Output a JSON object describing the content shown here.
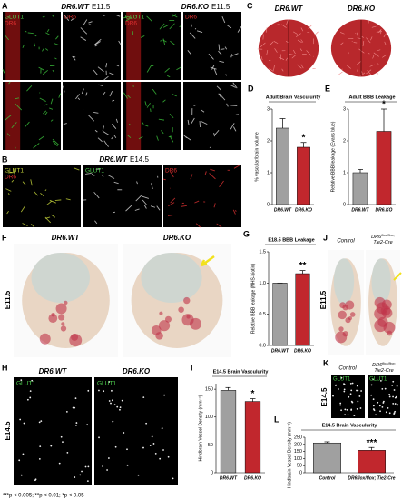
{
  "panel_labels": [
    "A",
    "B",
    "C",
    "D",
    "E",
    "F",
    "G",
    "H",
    "I",
    "J",
    "K",
    "L"
  ],
  "genotypes": {
    "wt": "DR6.WT",
    "ko": "DR6.KO",
    "control": "Control",
    "conditional": {
      "gene": "DR6",
      "allele": "flox/flox;",
      "driver": "Tie2-Cre"
    }
  },
  "stages": {
    "e11": "E11.5",
    "e14": "E14.5"
  },
  "stains": {
    "glut1": "GLUT1",
    "dr6": "DR6"
  },
  "footnote": "***p < 0.005; **p < 0.01; *p < 0.05",
  "chart_data": [
    {
      "type": "bar",
      "title": "Adult Brain Vasculurity",
      "ylabel": "% vascular/brain volume",
      "categories": [
        "DR6.WT",
        "DR6.KO"
      ],
      "values": [
        2.4,
        1.8
      ],
      "errors": [
        0.3,
        0.15
      ],
      "colors": [
        "#a0a0a0",
        "#c1272d"
      ],
      "annotation": "*",
      "ylim": [
        0,
        3
      ],
      "yticks": [
        0,
        1,
        2,
        3
      ]
    },
    {
      "type": "bar",
      "title": "Adult BBB Leakage",
      "ylabel": "Relative BBB leakage (Evans blue)",
      "categories": [
        "DR6.WT",
        "DR6.KO"
      ],
      "values": [
        1.0,
        2.3
      ],
      "errors": [
        0.1,
        0.7
      ],
      "colors": [
        "#a0a0a0",
        "#c1272d"
      ],
      "annotation": "*",
      "ylim": [
        0,
        3
      ],
      "yticks": [
        0,
        1,
        2,
        3
      ]
    },
    {
      "type": "bar",
      "title": "E18.5 BBB Leakage",
      "ylabel": "Relative BBB leakage (NHS-biotin)",
      "categories": [
        "DR6.WT",
        "DR6.KO"
      ],
      "values": [
        1.0,
        1.15
      ],
      "errors": [
        0,
        0.05
      ],
      "colors": [
        "#a0a0a0",
        "#c1272d"
      ],
      "annotation": "**",
      "ylim": [
        0,
        1.5
      ],
      "yticks": [
        {
          "value": 0,
          "label": "0.0"
        },
        {
          "value": 0.5,
          "label": "0.5"
        },
        {
          "value": 1,
          "label": "1.0"
        },
        {
          "value": 1.5,
          "label": "1.5"
        }
      ]
    },
    {
      "type": "bar",
      "title": "E14.5 Brain Vasculurity",
      "ylabel": "Hindbrain Vessel Density (mm⁻²)",
      "categories": [
        "DR6.WT",
        "DR6.KO"
      ],
      "values": [
        148,
        128
      ],
      "errors": [
        5,
        5
      ],
      "colors": [
        "#a0a0a0",
        "#c1272d"
      ],
      "annotation": "*",
      "ylim": [
        0,
        160
      ],
      "yticks": [
        0,
        50,
        100,
        150
      ]
    },
    {
      "type": "bar",
      "title": "E14.5 Brain Vasculurity",
      "ylabel": "Hindbrain Vessel Density (mm⁻²)",
      "categories": [
        "Control",
        "DR6flox/flox; Tie2-Cre"
      ],
      "values": [
        210,
        158
      ],
      "errors": [
        8,
        20
      ],
      "colors": [
        "#a0a0a0",
        "#c1272d"
      ],
      "annotation": "***",
      "ylim": [
        0,
        250
      ],
      "yticks": [
        0,
        50,
        100,
        150,
        200,
        250
      ]
    }
  ]
}
